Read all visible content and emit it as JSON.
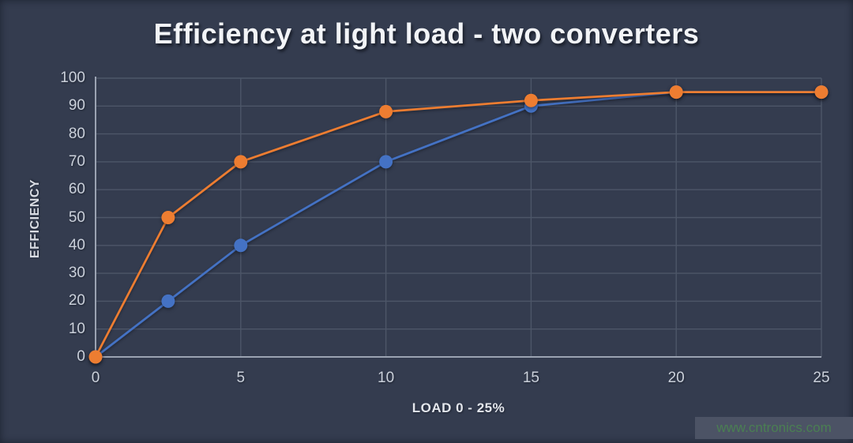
{
  "chart_data": {
    "type": "line",
    "title": "Efficiency at light load - two converters",
    "xlabel": "LOAD 0 - 25%",
    "ylabel": "EFFICIENCY",
    "xlim": [
      0,
      25
    ],
    "ylim": [
      0,
      100
    ],
    "x_ticks": [
      0,
      5,
      10,
      15,
      20,
      25
    ],
    "y_ticks": [
      0,
      10,
      20,
      30,
      40,
      50,
      60,
      70,
      80,
      90,
      100
    ],
    "grid": true,
    "legend": "none",
    "series": [
      {
        "id": "blue-converter",
        "color": "#4472C4",
        "x": [
          0,
          2.5,
          5,
          10,
          15,
          20,
          25
        ],
        "y": [
          0,
          20,
          40,
          70,
          90,
          95,
          95
        ]
      },
      {
        "id": "orange-converter",
        "color": "#ED7D31",
        "x": [
          0,
          2.5,
          5,
          10,
          15,
          20,
          25
        ],
        "y": [
          0,
          50,
          70,
          88,
          92,
          95,
          95
        ]
      }
    ]
  },
  "watermark": {
    "text": "www.cntronics.com",
    "text_color": "#4A7F52",
    "box_color": "#4C5365"
  },
  "theme": {
    "background": "#343C4F",
    "gridline": "#4D5668",
    "axis": "#9BA3B2",
    "tick_label": "#CBD1DB",
    "title_color": "#F2F4F7"
  }
}
